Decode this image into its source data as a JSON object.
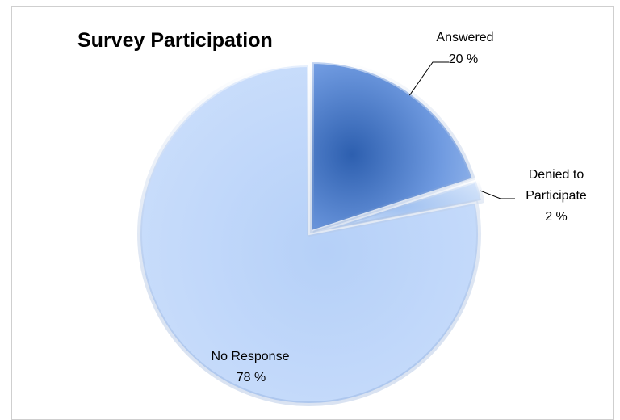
{
  "chart_data": {
    "type": "pie",
    "title": "Survey Participation",
    "slices": [
      {
        "label": "Answered",
        "value": 20,
        "value_label": "20 %",
        "color": "#7AA5E6",
        "exploded": true
      },
      {
        "label": "Denied to Participate",
        "label_lines": [
          "Denied to",
          "Participate"
        ],
        "value": 2,
        "value_label": "2 %",
        "color": "#A9C8F2",
        "exploded": true
      },
      {
        "label": "No Response",
        "value": 78,
        "value_label": "78 %",
        "color": "#C5DBF9",
        "exploded": false
      }
    ],
    "start_angle": "12 o'clock",
    "direction": "clockwise",
    "legend": "none",
    "style": "3D bevel"
  }
}
